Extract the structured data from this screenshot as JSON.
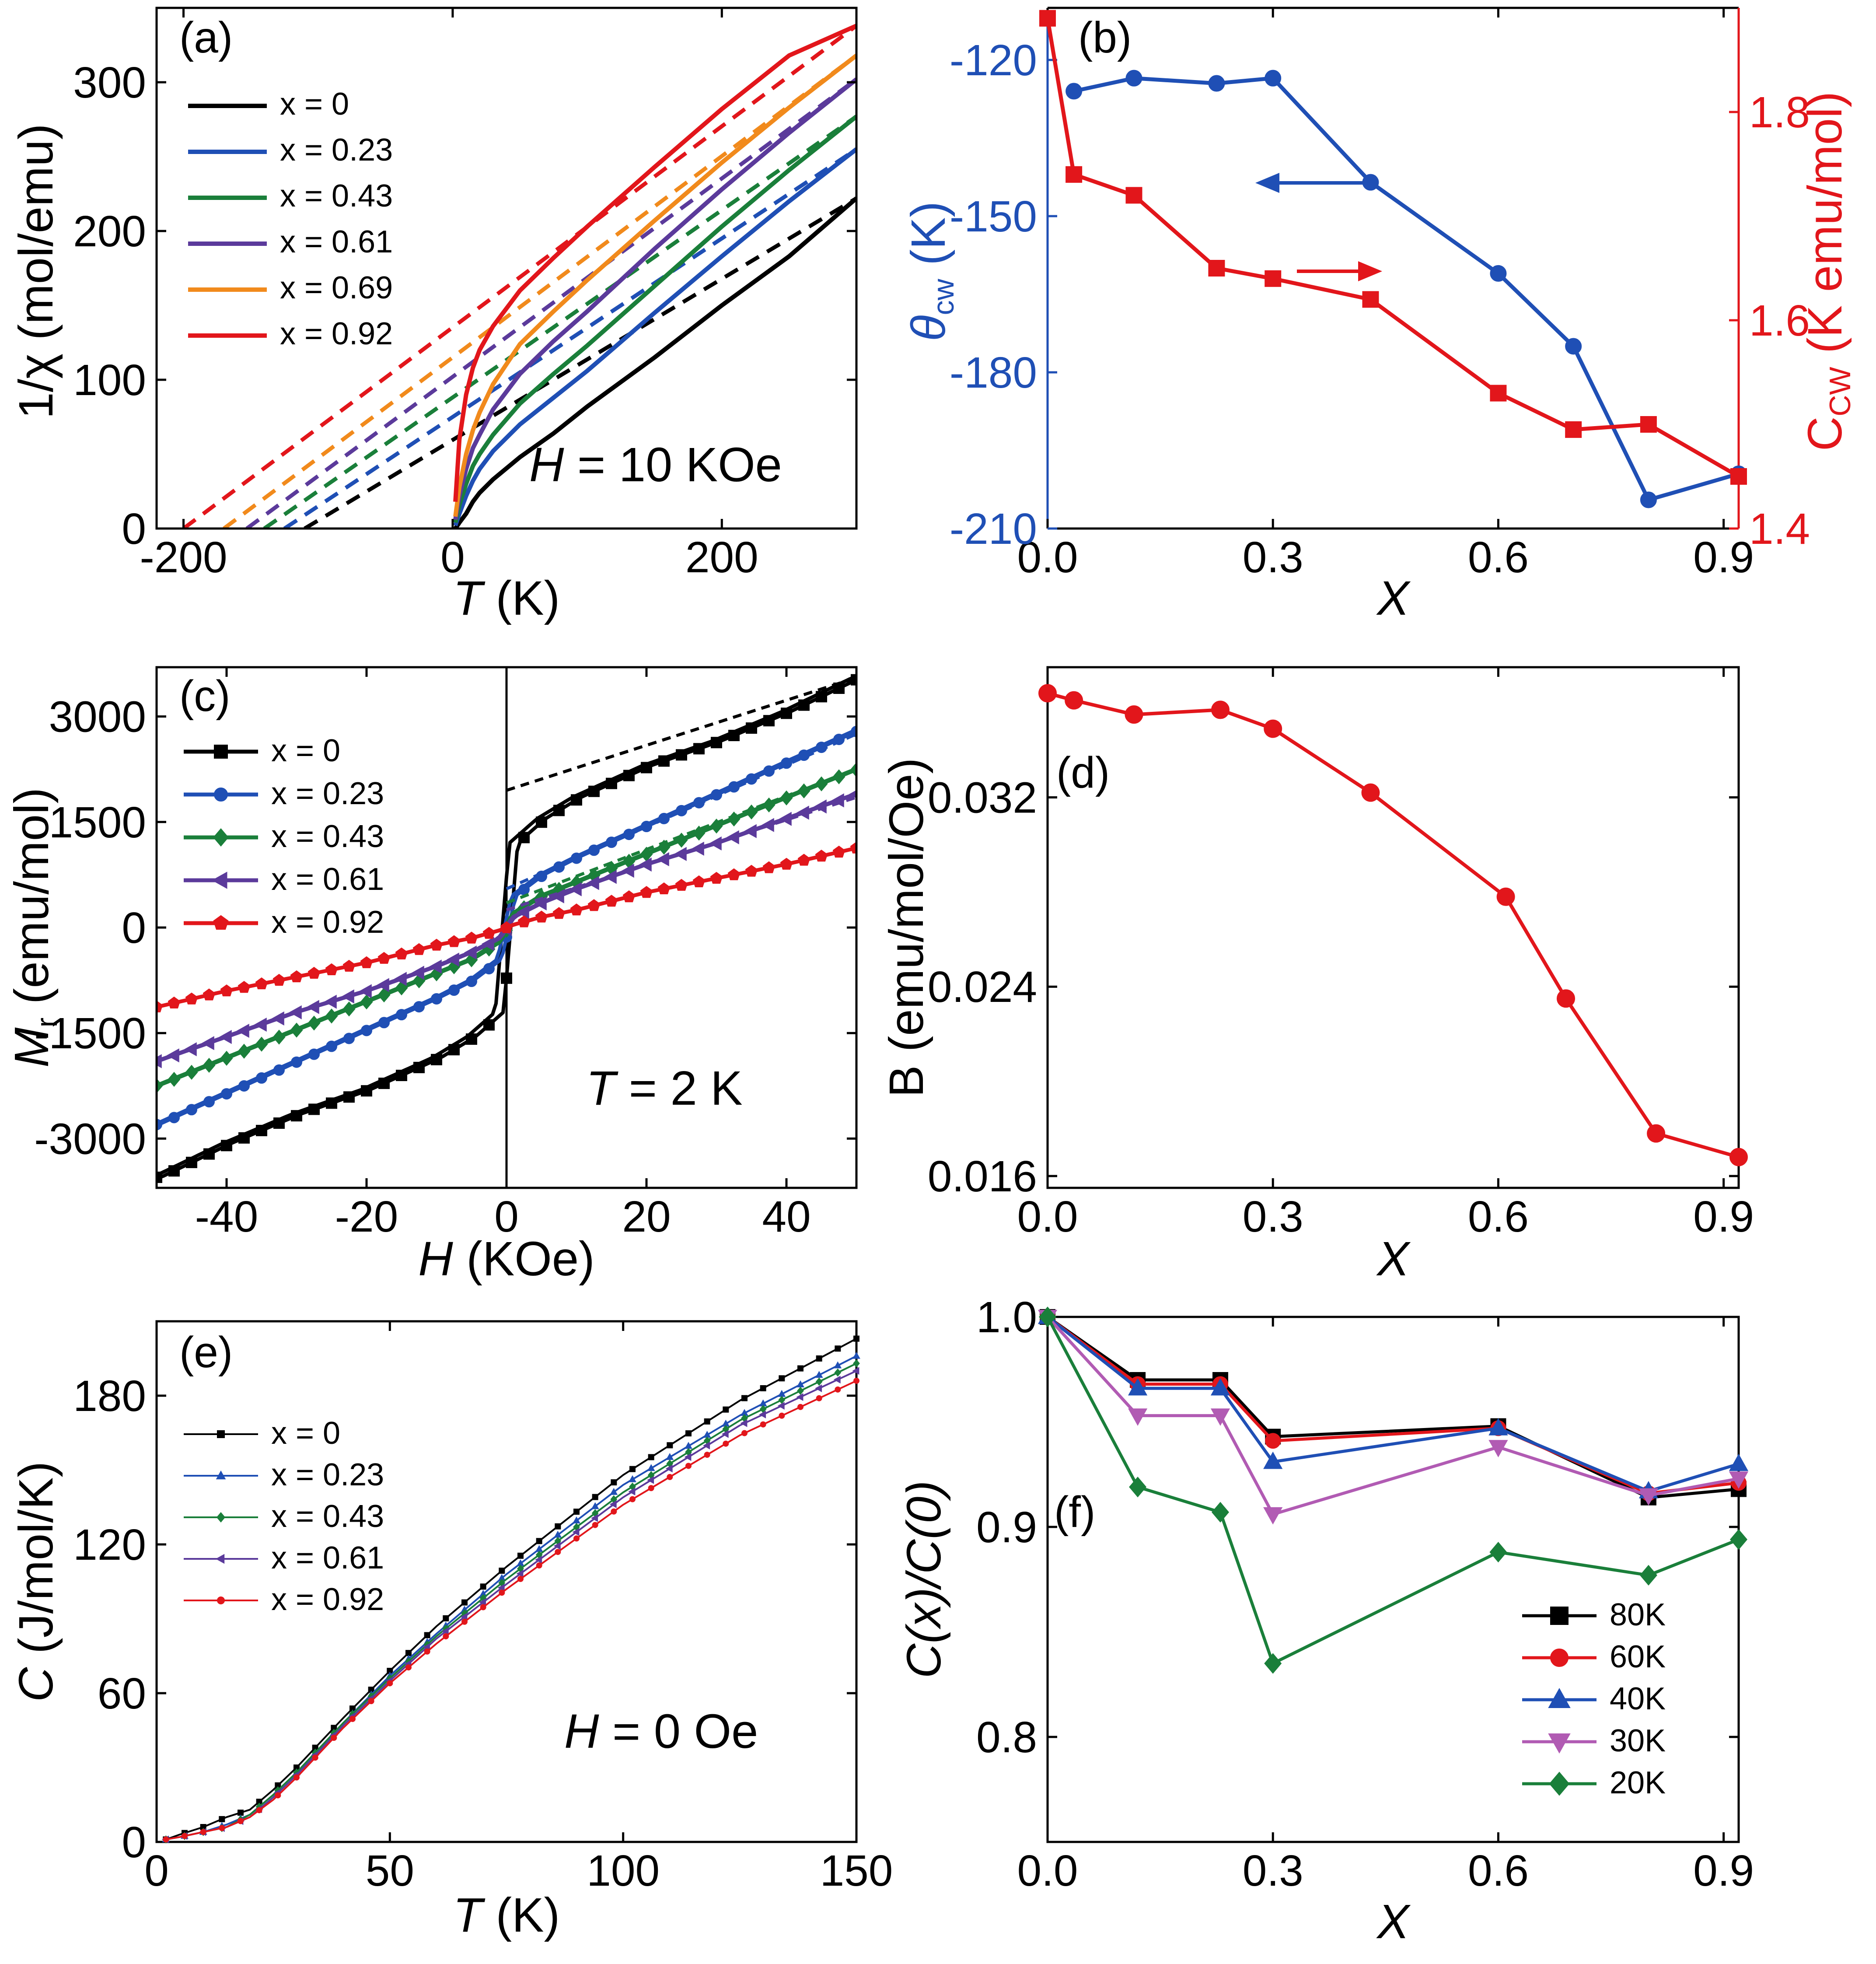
{
  "chart_data": [
    {
      "panel": "(a)",
      "type": "line",
      "xlabel_var": "T",
      "xlabel_unit": " (K)",
      "ylabel": "1/χ (mol/emu)",
      "xlim": [
        -220,
        300
      ],
      "ylim": [
        0,
        350
      ],
      "xticks": [
        -200,
        0,
        200
      ],
      "yticks": [
        0,
        100,
        200,
        300
      ],
      "annotation_var": "H",
      "annotation_rest": " = 10 KOe",
      "legend": [
        "x = 0",
        "x = 0.23",
        "x = 0.43",
        "x = 0.61",
        "x = 0.69",
        "x = 0.92"
      ],
      "series": [
        {
          "name": "x = 0",
          "color": "#000000",
          "theta": -110,
          "C": 1.84,
          "shift": 100,
          "data_x": [
            2,
            5,
            10,
            15,
            20,
            30,
            50,
            75,
            100,
            150,
            200,
            250,
            300
          ],
          "data_y": [
            0,
            4,
            10,
            18,
            24,
            33,
            48,
            64,
            82,
            115,
            150,
            183,
            222
          ]
        },
        {
          "name": "x = 0.23",
          "color": "#1f4fb5",
          "theta": -125,
          "C": 1.67,
          "shift": 100,
          "data_x": [
            2,
            5,
            10,
            15,
            20,
            30,
            50,
            75,
            100,
            150,
            200,
            250,
            300
          ],
          "data_y": [
            2,
            10,
            22,
            32,
            40,
            52,
            70,
            88,
            106,
            145,
            183,
            220,
            255
          ]
        },
        {
          "name": "x = 0.43",
          "color": "#1a7f3a",
          "theta": -140,
          "C": 1.61,
          "shift": 100,
          "data_x": [
            2,
            5,
            10,
            15,
            20,
            30,
            50,
            75,
            100,
            150,
            200,
            250,
            300
          ],
          "data_y": [
            4,
            16,
            30,
            42,
            50,
            63,
            84,
            104,
            123,
            163,
            203,
            241,
            277
          ]
        },
        {
          "name": "x = 0.61",
          "color": "#5b3a9b",
          "theta": -153,
          "C": 1.53,
          "shift": 100,
          "data_x": [
            2,
            5,
            10,
            15,
            20,
            30,
            50,
            75,
            100,
            150,
            200,
            250,
            300
          ],
          "data_y": [
            6,
            22,
            40,
            54,
            63,
            80,
            104,
            126,
            146,
            188,
            228,
            266,
            302
          ]
        },
        {
          "name": "x = 0.69",
          "color": "#f18a1c",
          "theta": -170,
          "C": 1.48,
          "shift": 100,
          "data_x": [
            2,
            5,
            10,
            15,
            20,
            30,
            50,
            75,
            100,
            150,
            200,
            250,
            300
          ],
          "data_y": [
            8,
            28,
            50,
            66,
            78,
            97,
            124,
            146,
            167,
            207,
            246,
            283,
            318
          ]
        },
        {
          "name": "x = 0.92",
          "color": "#e2161b",
          "theta": -200,
          "C": 1.45,
          "shift": 100,
          "data_x": [
            2,
            5,
            10,
            15,
            20,
            30,
            50,
            75,
            100,
            150,
            200,
            250,
            300
          ],
          "data_y": [
            18,
            60,
            90,
            108,
            120,
            136,
            160,
            182,
            203,
            243,
            282,
            318,
            338
          ]
        }
      ]
    },
    {
      "panel": "(b)",
      "type": "line",
      "xlabel": "X",
      "ylabel_left_sym": "θ",
      "ylabel_left_sub": "cw",
      "ylabel_left_unit": " (K)",
      "ylabel_right_main": "C",
      "ylabel_right_sub": "CW",
      "ylabel_right_unit": " (K emu/mol)",
      "xlim": [
        0,
        0.92
      ],
      "ylim_left": [
        -210,
        -110
      ],
      "ylim_right": [
        1.4,
        1.9
      ],
      "xticks": [
        "0.0",
        "0.3",
        "0.6",
        "0.9"
      ],
      "yticks_left": [
        "-120",
        "-150",
        "-180",
        "-210"
      ],
      "yticks_right": [
        "1.4",
        "1.6",
        "1.8"
      ],
      "series": [
        {
          "name": "θcw",
          "axis": "left",
          "color": "#1f4fb5",
          "marker": "circle",
          "x": [
            0.035,
            0.115,
            0.225,
            0.3,
            0.43,
            0.6,
            0.7,
            0.8,
            0.92
          ],
          "y": [
            -126,
            -123.5,
            -124.5,
            -123.5,
            -143.5,
            -161,
            -175,
            -204.5,
            -199.5
          ]
        },
        {
          "name": "Ccw",
          "axis": "right",
          "color": "#e2161b",
          "marker": "square",
          "x": [
            0,
            0.035,
            0.115,
            0.225,
            0.3,
            0.43,
            0.6,
            0.7,
            0.8,
            0.92
          ],
          "y": [
            1.89,
            1.74,
            1.72,
            1.65,
            1.64,
            1.62,
            1.53,
            1.495,
            1.5,
            1.45
          ]
        }
      ]
    },
    {
      "panel": "(c)",
      "type": "line",
      "xlabel_var": "H",
      "xlabel_unit": " (KOe)",
      "ylabel_var": "M",
      "ylabel_sub": "r",
      "ylabel_unit": " (emu/mol)",
      "xlim": [
        -50,
        50
      ],
      "ylim": [
        -3700,
        3700
      ],
      "xticks": [
        -40,
        -20,
        0,
        20,
        40
      ],
      "yticks": [
        -3000,
        -1500,
        0,
        1500,
        3000
      ],
      "annotation_var": "T",
      "annotation_rest": " = 2 K",
      "legend": [
        "x = 0",
        "x = 0.23",
        "x = 0.43",
        "x = 0.61",
        "x = 0.92"
      ],
      "series": [
        {
          "name": "x = 0",
          "color": "#000000",
          "marker": "square",
          "Msat": 1350,
          "Hc": 0.6,
          "slope": 44,
          "x": [
            -50,
            -40,
            -30,
            -20,
            -10,
            -5,
            -1,
            0,
            1,
            5,
            10,
            20,
            30,
            40,
            50
          ],
          "y": [
            -3550,
            -3070,
            -2650,
            -2300,
            -1850,
            -1550,
            -1200,
            0,
            1200,
            1550,
            1850,
            2300,
            2650,
            3070,
            3550
          ]
        },
        {
          "name": "x = 0.23",
          "color": "#1f4fb5",
          "marker": "circle",
          "Msat": 500,
          "Hc": 0.3,
          "slope": 47,
          "x": [
            -50,
            -40,
            -30,
            -20,
            -10,
            -5,
            -1,
            0,
            1,
            5,
            10,
            20,
            30,
            40,
            50
          ],
          "y": [
            -2800,
            -2350,
            -1900,
            -1450,
            -1000,
            -750,
            -450,
            0,
            450,
            750,
            1000,
            1450,
            1900,
            2350,
            2800
          ]
        },
        {
          "name": "x = 0.43",
          "color": "#1a7f3a",
          "marker": "diamond",
          "Msat": 300,
          "Hc": 0.2,
          "slope": 40,
          "x": [
            -50,
            -40,
            -30,
            -20,
            -10,
            -5,
            -1,
            0,
            1,
            5,
            10,
            20,
            30,
            40,
            50
          ],
          "y": [
            -2250,
            -1850,
            -1450,
            -1050,
            -650,
            -450,
            -200,
            0,
            200,
            450,
            650,
            1050,
            1450,
            1850,
            2250
          ]
        },
        {
          "name": "x = 0.61",
          "color": "#5b3a9b",
          "marker": "triangle-left",
          "Msat": 250,
          "Hc": 0.15,
          "slope": 33,
          "x": [
            -50,
            -40,
            -30,
            -20,
            -10,
            -5,
            -1,
            0,
            1,
            5,
            10,
            20,
            30,
            40,
            50
          ],
          "y": [
            -1900,
            -1550,
            -1200,
            -900,
            -550,
            -350,
            -150,
            0,
            150,
            350,
            550,
            900,
            1200,
            1550,
            1900
          ]
        },
        {
          "name": "x = 0.92",
          "color": "#e2161b",
          "marker": "pentagon",
          "Msat": 30,
          "Hc": 0.1,
          "slope": 22,
          "x": [
            -50,
            -40,
            -30,
            -20,
            -10,
            -5,
            -1,
            0,
            1,
            5,
            10,
            20,
            30,
            40,
            50
          ],
          "y": [
            -1130,
            -900,
            -700,
            -500,
            -250,
            -150,
            -40,
            0,
            40,
            150,
            250,
            500,
            700,
            900,
            1130
          ]
        }
      ],
      "dashed_fits": [
        {
          "series": "x = 0",
          "color": "#000000",
          "x": [
            0,
            50
          ],
          "y": [
            1950,
            3550
          ]
        },
        {
          "series": "x = 0.23",
          "color": "#1f4fb5",
          "x": [
            0,
            50
          ],
          "y": [
            550,
            2750
          ]
        },
        {
          "series": "x = 0.43",
          "color": "#1a7f3a",
          "x": [
            0,
            50
          ],
          "y": [
            350,
            2250
          ]
        },
        {
          "series": "x = 0.61",
          "color": "#5b3a9b",
          "x": [
            0,
            50
          ],
          "y": [
            250,
            1850
          ]
        }
      ]
    },
    {
      "panel": "(d)",
      "type": "line",
      "xlabel": "X",
      "ylabel": "B (emu/mol/Oe)",
      "xlim": [
        0,
        0.92
      ],
      "ylim": [
        0.0155,
        0.0375
      ],
      "xticks": [
        "0.0",
        "0.3",
        "0.6",
        "0.9"
      ],
      "yticks": [
        "0.016",
        "0.024",
        "0.032"
      ],
      "series": [
        {
          "name": "B",
          "color": "#e2161b",
          "marker": "circle",
          "x": [
            0,
            0.035,
            0.115,
            0.23,
            0.3,
            0.43,
            0.61,
            0.69,
            0.81,
            0.92
          ],
          "y": [
            0.0364,
            0.0361,
            0.0355,
            0.0357,
            0.0349,
            0.0322,
            0.0278,
            0.0235,
            0.0178,
            0.0168
          ]
        }
      ]
    },
    {
      "panel": "(e)",
      "type": "line",
      "xlabel_var": "T",
      "xlabel_unit": " (K)",
      "ylabel_var": "C",
      "ylabel_unit": " (J/mol/K)",
      "xlim": [
        0,
        150
      ],
      "ylim": [
        0,
        210
      ],
      "xticks": [
        0,
        50,
        100,
        150
      ],
      "yticks": [
        0,
        60,
        120,
        180
      ],
      "annotation_var": "H",
      "annotation_rest": " = 0 Oe",
      "legend": [
        "x = 0",
        "x = 0.23",
        "x = 0.43",
        "x = 0.61",
        "x = 0.92"
      ],
      "series": [
        {
          "name": "x = 0",
          "color": "#000000",
          "marker": "square",
          "x": [
            2,
            5,
            10,
            15,
            20,
            25,
            30,
            40,
            50,
            60,
            75,
            100,
            125,
            150
          ],
          "y": [
            1,
            3,
            6,
            10,
            13,
            21,
            30,
            50,
            69,
            87,
            111,
            148,
            178,
            203
          ]
        },
        {
          "name": "x = 0.23",
          "color": "#1f4fb5",
          "marker": "triangle",
          "x": [
            2,
            5,
            10,
            15,
            20,
            25,
            30,
            40,
            50,
            60,
            75,
            100,
            125,
            150
          ],
          "y": [
            1,
            2,
            4,
            7,
            11,
            19,
            28,
            48,
            67,
            84,
            108,
            144,
            172,
            196
          ]
        },
        {
          "name": "x = 0.43",
          "color": "#1a7f3a",
          "marker": "diamond",
          "x": [
            2,
            5,
            10,
            15,
            20,
            25,
            30,
            40,
            50,
            60,
            75,
            100,
            125,
            150
          ],
          "y": [
            1,
            2,
            4,
            6,
            11,
            19,
            28,
            48,
            66,
            83,
            106,
            141,
            170,
            193
          ]
        },
        {
          "name": "x = 0.61",
          "color": "#5b3a9b",
          "marker": "triangle-left",
          "x": [
            2,
            5,
            10,
            15,
            20,
            25,
            30,
            40,
            50,
            60,
            75,
            100,
            125,
            150
          ],
          "y": [
            1,
            2,
            4,
            6,
            10,
            18,
            27,
            47,
            65,
            82,
            104,
            139,
            168,
            190
          ]
        },
        {
          "name": "x = 0.92",
          "color": "#e2161b",
          "marker": "circle",
          "x": [
            2,
            5,
            10,
            15,
            20,
            25,
            30,
            40,
            50,
            60,
            75,
            100,
            125,
            150
          ],
          "y": [
            1,
            2,
            4,
            6,
            10,
            17,
            26,
            46,
            64,
            80,
            102,
            136,
            164,
            186
          ]
        }
      ]
    },
    {
      "panel": "(f)",
      "type": "line",
      "xlabel": "X",
      "ylabel": "C(x)/C(0)",
      "xlim": [
        0,
        0.92
      ],
      "ylim": [
        0.75,
        1.0
      ],
      "xticks": [
        "0.0",
        "0.3",
        "0.6",
        "0.9"
      ],
      "yticks": [
        "0.8",
        "0.9",
        "1.0"
      ],
      "legend": [
        "80K",
        "60K",
        "40K",
        "30K",
        "20K"
      ],
      "series": [
        {
          "name": "80K",
          "color": "#000000",
          "marker": "square",
          "x": [
            0,
            0.12,
            0.23,
            0.3,
            0.6,
            0.8,
            0.92
          ],
          "y": [
            1.0,
            0.97,
            0.97,
            0.943,
            0.948,
            0.914,
            0.918
          ]
        },
        {
          "name": "60K",
          "color": "#e2161b",
          "marker": "circle",
          "x": [
            0,
            0.12,
            0.23,
            0.3,
            0.6,
            0.8,
            0.92
          ],
          "y": [
            1.0,
            0.968,
            0.968,
            0.941,
            0.947,
            0.916,
            0.921
          ]
        },
        {
          "name": "40K",
          "color": "#1f4fb5",
          "marker": "triangle",
          "x": [
            0,
            0.12,
            0.23,
            0.3,
            0.6,
            0.8,
            0.92
          ],
          "y": [
            1.0,
            0.966,
            0.966,
            0.931,
            0.947,
            0.917,
            0.93
          ]
        },
        {
          "name": "30K",
          "color": "#b15bb3",
          "marker": "triangle-down",
          "x": [
            0,
            0.12,
            0.23,
            0.3,
            0.6,
            0.8,
            0.92
          ],
          "y": [
            1.0,
            0.953,
            0.953,
            0.906,
            0.938,
            0.915,
            0.923
          ]
        },
        {
          "name": "20K",
          "color": "#1a7f3a",
          "marker": "diamond",
          "x": [
            0,
            0.12,
            0.23,
            0.3,
            0.6,
            0.8,
            0.92
          ],
          "y": [
            1.0,
            0.919,
            0.907,
            0.835,
            0.888,
            0.877,
            0.894
          ]
        }
      ]
    }
  ]
}
